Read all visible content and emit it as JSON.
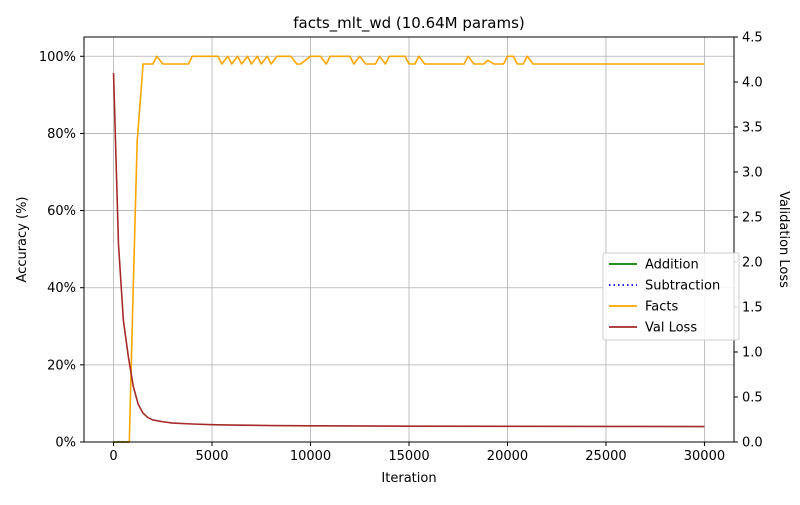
{
  "chart_data": {
    "type": "line",
    "title": "facts_mlt_wd (10.64M params)",
    "xlabel": "Iteration",
    "ylabel": "Accuracy (%)",
    "y2label": "Validation Loss",
    "xlim": [
      -1500,
      31500
    ],
    "ylim": [
      0,
      105
    ],
    "y2lim": [
      0,
      4.5
    ],
    "x_ticks": [
      0,
      5000,
      10000,
      15000,
      20000,
      25000,
      30000
    ],
    "x_tick_labels": [
      "0",
      "5000",
      "10000",
      "15000",
      "20000",
      "25000",
      "30000"
    ],
    "y_ticks": [
      0,
      20,
      40,
      60,
      80,
      100
    ],
    "y_tick_labels": [
      "0%",
      "20%",
      "40%",
      "60%",
      "80%",
      "100%"
    ],
    "y2_ticks": [
      0,
      0.5,
      1.0,
      1.5,
      2.0,
      2.5,
      3.0,
      3.5,
      4.0,
      4.5
    ],
    "y2_tick_labels": [
      "0.0",
      "0.5",
      "1.0",
      "1.5",
      "2.0",
      "2.5",
      "3.0",
      "3.5",
      "4.0",
      "4.5"
    ],
    "grid": true,
    "legend_position": "center-right",
    "series": [
      {
        "name": "Addition",
        "axis": "left",
        "color": "#008000",
        "dash": "solid",
        "x": [
          0,
          300,
          600,
          800
        ],
        "y": [
          0,
          0,
          0,
          0
        ]
      },
      {
        "name": "Subtraction",
        "axis": "left",
        "color": "#0000ff",
        "dash": "dotted",
        "x": [
          0,
          300,
          600,
          800
        ],
        "y": [
          0,
          0,
          0,
          0
        ]
      },
      {
        "name": "Facts",
        "axis": "left",
        "color": "#ffa500",
        "dash": "solid",
        "x": [
          0,
          300,
          600,
          800,
          1000,
          1200,
          1500,
          2000,
          2200,
          2500,
          3000,
          3500,
          3800,
          4000,
          4500,
          5000,
          5300,
          5500,
          5800,
          6000,
          6300,
          6500,
          6800,
          7000,
          7300,
          7500,
          7800,
          8000,
          8300,
          8500,
          9000,
          9300,
          9500,
          10000,
          10500,
          10800,
          11000,
          11500,
          12000,
          12200,
          12500,
          12800,
          13000,
          13300,
          13500,
          13800,
          14000,
          14500,
          14800,
          15000,
          15300,
          15500,
          15800,
          16000,
          16500,
          17000,
          17500,
          17800,
          18000,
          18300,
          18800,
          19000,
          19300,
          19800,
          20000,
          20300,
          20500,
          20800,
          21000,
          21300,
          22000,
          23000,
          24000,
          25000,
          26000,
          27000,
          28000,
          29000,
          30000
        ],
        "y": [
          0,
          0,
          0,
          0,
          40,
          78,
          98,
          98,
          100,
          98,
          98,
          98,
          98,
          100,
          100,
          100,
          100,
          98,
          100,
          98,
          100,
          98,
          100,
          98,
          100,
          98,
          100,
          98,
          100,
          100,
          100,
          98,
          98,
          100,
          100,
          98,
          100,
          100,
          100,
          98,
          100,
          98,
          98,
          98,
          100,
          98,
          100,
          100,
          100,
          98,
          98,
          100,
          98,
          98,
          98,
          98,
          98,
          98,
          100,
          98,
          98,
          99,
          98,
          98,
          100,
          100,
          98,
          98,
          100,
          98,
          98,
          98,
          98,
          98,
          98,
          98,
          98,
          98,
          98
        ]
      },
      {
        "name": "Val Loss",
        "axis": "right",
        "color": "#a52a2a",
        "dash": "solid",
        "x": [
          0,
          250,
          500,
          750,
          1000,
          1250,
          1500,
          1750,
          2000,
          2500,
          3000,
          4000,
          5000,
          6000,
          8000,
          10000,
          12000,
          15000,
          20000,
          25000,
          30000
        ],
        "y": [
          4.1,
          2.2,
          1.35,
          0.95,
          0.62,
          0.42,
          0.32,
          0.27,
          0.245,
          0.225,
          0.21,
          0.2,
          0.192,
          0.188,
          0.183,
          0.18,
          0.178,
          0.176,
          0.174,
          0.173,
          0.172
        ]
      }
    ]
  }
}
